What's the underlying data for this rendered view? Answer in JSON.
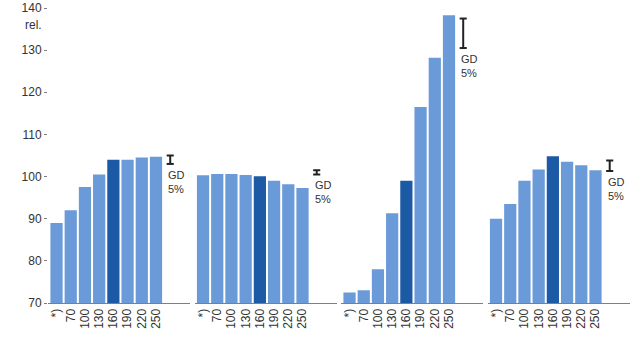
{
  "chart_data": [
    {
      "type": "bar",
      "ylabel": "rel.",
      "categories": [
        "*)",
        "70",
        "100",
        "130",
        "160",
        "190",
        "220",
        "250"
      ],
      "values": [
        89,
        92,
        97.5,
        100.5,
        104,
        104,
        104.5,
        104.7
      ],
      "colors": [
        "#6a9ad8",
        "#6a9ad8",
        "#6a9ad8",
        "#6a9ad8",
        "#1d5aa6",
        "#6a9ad8",
        "#6a9ad8",
        "#6a9ad8"
      ],
      "ylim": [
        70,
        140
      ],
      "yticks": [
        70,
        80,
        90,
        100,
        110,
        120,
        130,
        140
      ],
      "gd_range": [
        103,
        105
      ],
      "annotations": [
        "GD 5%"
      ],
      "grid": false
    },
    {
      "type": "bar",
      "categories": [
        "*)",
        "70",
        "100",
        "130",
        "160",
        "190",
        "220",
        "250"
      ],
      "values": [
        100.3,
        100.6,
        100.6,
        100.4,
        100.1,
        99,
        98.2,
        97.3
      ],
      "colors": [
        "#6a9ad8",
        "#6a9ad8",
        "#6a9ad8",
        "#6a9ad8",
        "#1d5aa6",
        "#6a9ad8",
        "#6a9ad8",
        "#6a9ad8"
      ],
      "ylim": [
        70,
        140
      ],
      "tick_labels": "x",
      "gd_range": [
        100.5,
        101.5
      ],
      "annotations": [
        "GD 5%"
      ],
      "grid": false
    },
    {
      "type": "bar",
      "categories": [
        "*)",
        "70",
        "100",
        "130",
        "160",
        "190",
        "220",
        "250"
      ],
      "values": [
        72.5,
        73,
        78,
        91.3,
        99,
        116.5,
        128.2,
        138.3
      ],
      "colors": [
        "#6a9ad8",
        "#6a9ad8",
        "#6a9ad8",
        "#6a9ad8",
        "#1d5aa6",
        "#6a9ad8",
        "#6a9ad8",
        "#6a9ad8"
      ],
      "ylim": [
        70,
        140
      ],
      "tick_labels": "x",
      "gd_range": [
        130.5,
        137.5
      ],
      "annotations": [
        "GD 5%"
      ],
      "grid": false
    },
    {
      "type": "bar",
      "categories": [
        "*)",
        "70",
        "100",
        "130",
        "160",
        "190",
        "220",
        "250"
      ],
      "values": [
        90,
        93.5,
        99,
        101.7,
        104.8,
        103.5,
        102.7,
        101.5
      ],
      "colors": [
        "#6a9ad8",
        "#6a9ad8",
        "#6a9ad8",
        "#6a9ad8",
        "#1d5aa6",
        "#6a9ad8",
        "#6a9ad8",
        "#6a9ad8"
      ],
      "ylim": [
        70,
        140
      ],
      "tick_labels": "x",
      "gd_range": [
        101.3,
        103.8
      ],
      "annotations": [
        "GD 5%"
      ],
      "grid": false
    }
  ]
}
